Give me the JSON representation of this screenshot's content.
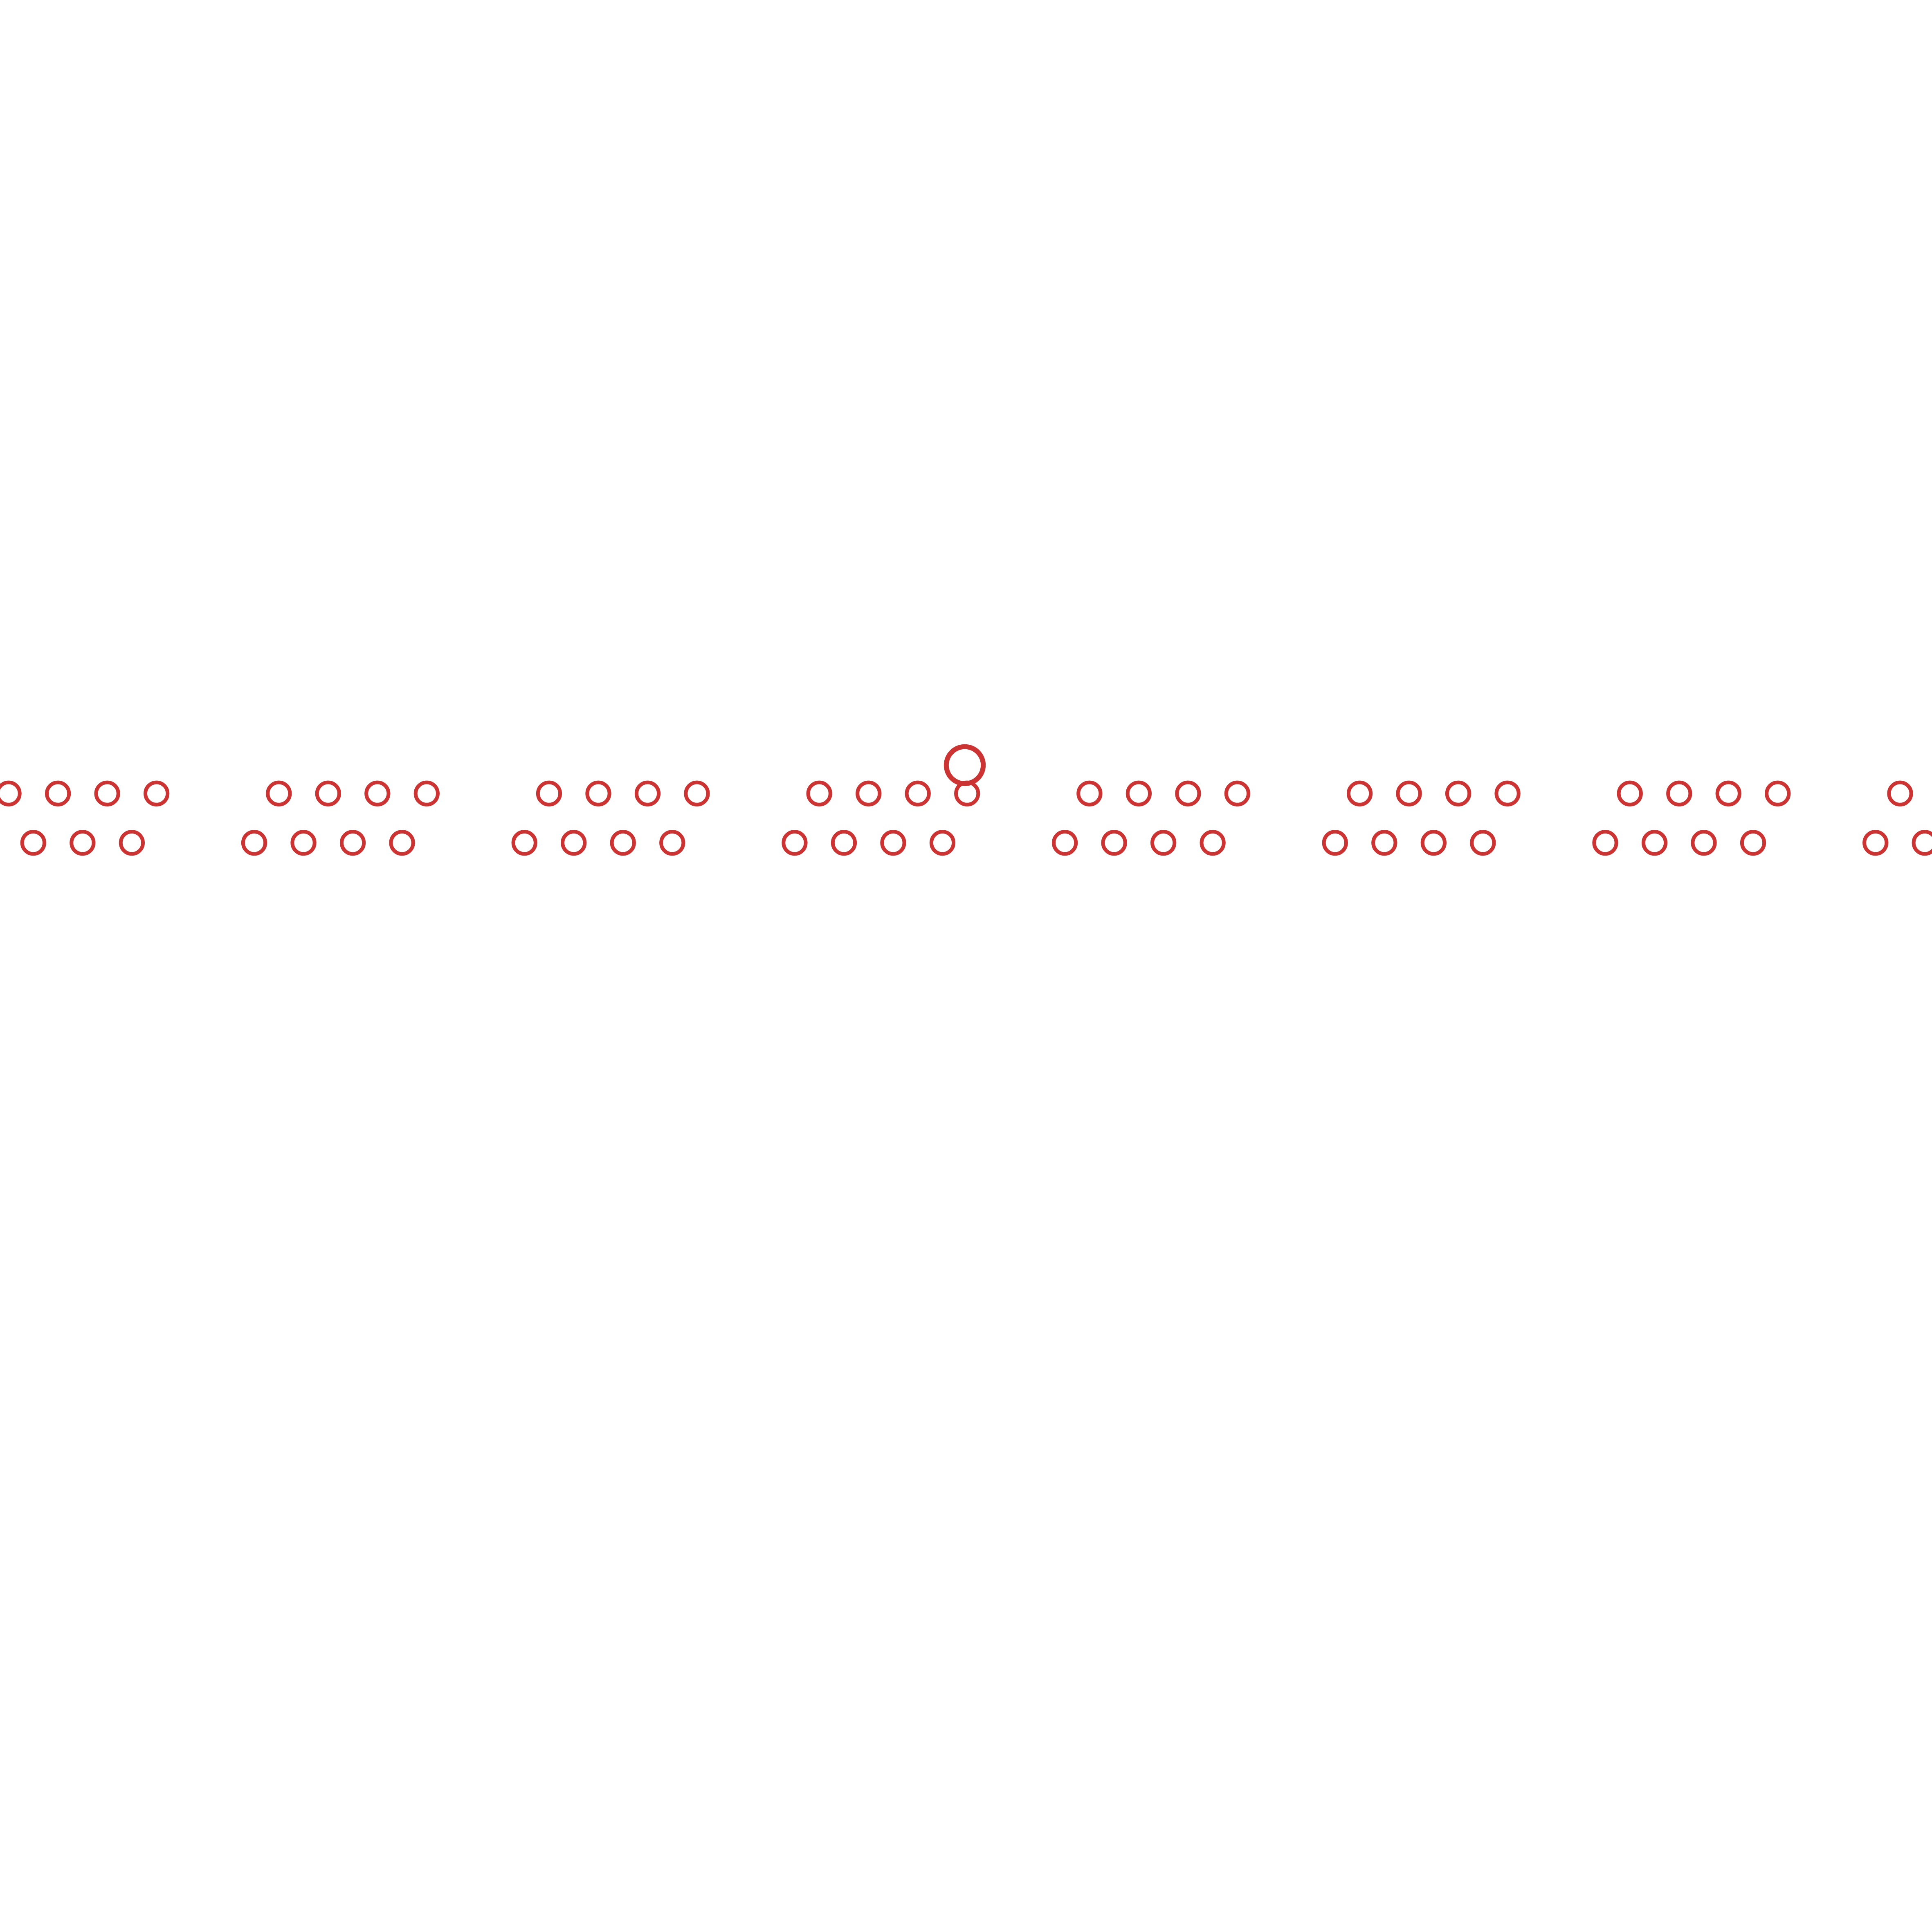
{
  "pattern": {
    "stroke_color": "#cc3333",
    "background_color": "#ffffff",
    "groups_per_row": 4,
    "group_count": 8,
    "rows": [
      "top",
      "bottom"
    ],
    "standalone_marker_count": 1
  }
}
